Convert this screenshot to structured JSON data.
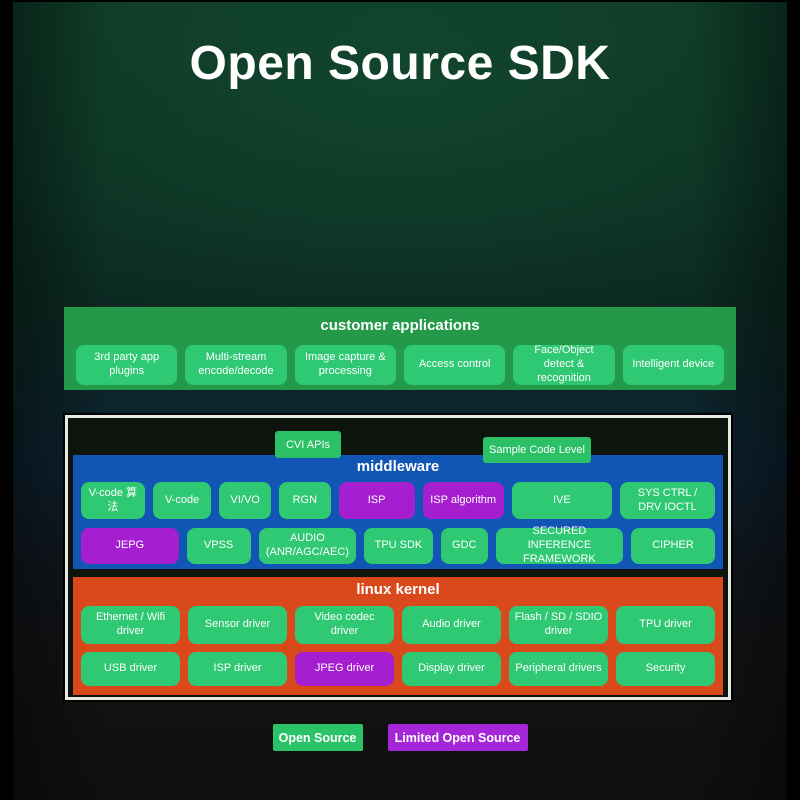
{
  "title": "Open Source SDK",
  "colors": {
    "open_source_green": "#2fc873",
    "limited_open_source_purple": "#a51fd0",
    "apps_banner_green": "#24994a",
    "middleware_blue": "#1256b5",
    "kernel_orange": "#d9491b"
  },
  "customer_applications": {
    "header": "customer applications",
    "items": [
      {
        "label": "3rd party app plugins"
      },
      {
        "label": "Multi-stream encode/decode"
      },
      {
        "label": "Image capture & processing"
      },
      {
        "label": "Access control"
      },
      {
        "label": "Face/Object detect & recognition"
      },
      {
        "label": "Intelligent device"
      }
    ]
  },
  "api_labels": {
    "cvi": "CVI APIs",
    "sample": "Sample Code Level"
  },
  "middleware": {
    "header": "middleware",
    "row1": [
      {
        "label": "V-code 算法",
        "type": "open"
      },
      {
        "label": "V-code",
        "type": "open"
      },
      {
        "label": "VI/VO",
        "type": "open"
      },
      {
        "label": "RGN",
        "type": "open"
      },
      {
        "label": "ISP",
        "type": "limited"
      },
      {
        "label": "ISP algorithm",
        "type": "limited"
      },
      {
        "label": "IVE",
        "type": "open"
      },
      {
        "label": "SYS CTRL / DRV IOCTL",
        "type": "open"
      }
    ],
    "row2": [
      {
        "label": "JEPG",
        "type": "limited"
      },
      {
        "label": "VPSS",
        "type": "open"
      },
      {
        "label": "AUDIO (ANR/AGC/AEC)",
        "type": "open"
      },
      {
        "label": "TPU SDK",
        "type": "open"
      },
      {
        "label": "GDC",
        "type": "open"
      },
      {
        "label": "SECURED INFERENCE FRAMEWORK",
        "type": "open"
      },
      {
        "label": "CIPHER",
        "type": "open"
      }
    ]
  },
  "linux_kernel": {
    "header": "linux kernel",
    "row1": [
      {
        "label": "Ethernet / Wifi driver",
        "type": "open"
      },
      {
        "label": "Sensor driver",
        "type": "open"
      },
      {
        "label": "Video codec driver",
        "type": "open"
      },
      {
        "label": "Audio driver",
        "type": "open"
      },
      {
        "label": "Flash / SD / SDIO driver",
        "type": "open"
      },
      {
        "label": "TPU driver",
        "type": "open"
      }
    ],
    "row2": [
      {
        "label": "USB driver",
        "type": "open"
      },
      {
        "label": "ISP driver",
        "type": "open"
      },
      {
        "label": "JPEG driver",
        "type": "limited"
      },
      {
        "label": "Display driver",
        "type": "open"
      },
      {
        "label": "Peripheral drivers",
        "type": "open"
      },
      {
        "label": "Security",
        "type": "open"
      }
    ]
  },
  "legend": {
    "open": "Open Source",
    "limited": "Limited Open Source"
  }
}
